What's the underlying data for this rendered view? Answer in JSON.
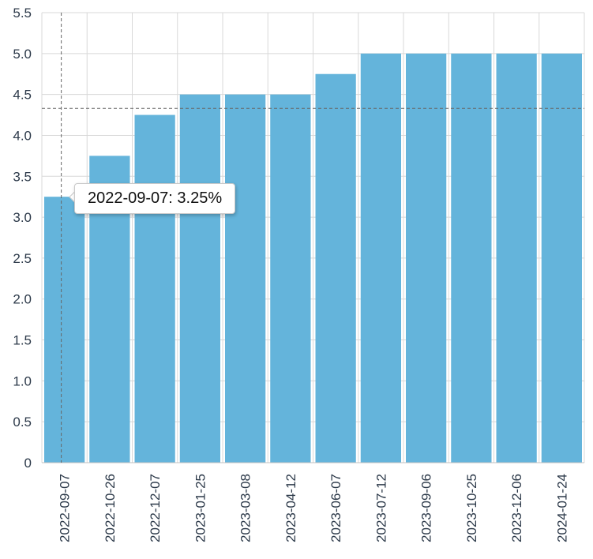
{
  "chart_data": {
    "type": "bar",
    "categories": [
      "2022-09-07",
      "2022-10-26",
      "2022-12-07",
      "2023-01-25",
      "2023-03-08",
      "2023-04-12",
      "2023-06-07",
      "2023-07-12",
      "2023-09-06",
      "2023-10-25",
      "2023-12-06",
      "2024-01-24"
    ],
    "values": [
      3.25,
      3.75,
      4.25,
      4.5,
      4.5,
      4.5,
      4.75,
      5.0,
      5.0,
      5.0,
      5.0,
      5.0
    ],
    "ylim": [
      0,
      5.5
    ],
    "yticks": [
      "0",
      "0.5",
      "1.0",
      "1.5",
      "2.0",
      "2.5",
      "3.0",
      "3.5",
      "4.0",
      "4.5",
      "5.0",
      "5.5"
    ],
    "grid": true,
    "bar_color": "#64b4db",
    "crosshair": {
      "category": "2022-09-07",
      "value": 4.33
    }
  },
  "tooltip": {
    "text": "2022-09-07: 3.25%"
  }
}
